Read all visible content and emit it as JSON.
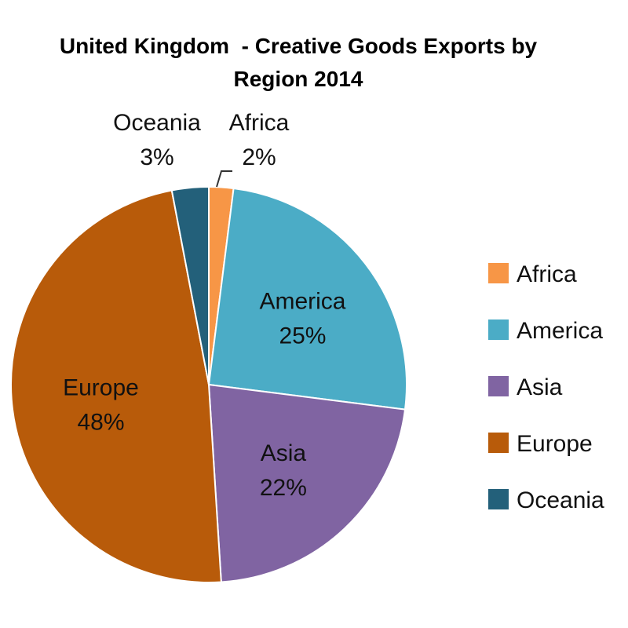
{
  "chart_data": {
    "type": "pie",
    "title_lines": [
      "United Kingdom  - Creative Goods Exports by",
      "Region 2014"
    ],
    "categories": [
      "Africa",
      "America",
      "Asia",
      "Europe",
      "Oceania"
    ],
    "values": [
      2,
      25,
      22,
      48,
      3
    ],
    "value_labels": [
      "2%",
      "25%",
      "22%",
      "48%",
      "3%"
    ],
    "colors": [
      "#F79646",
      "#4BACC6",
      "#8064A2",
      "#B85B0A",
      "#23607A"
    ],
    "label_text_colors": [
      "#111111",
      "#111111",
      "#111111",
      "#111111",
      "#111111"
    ],
    "start_angle_degrees": 0,
    "direction": "clockwise",
    "legend": {
      "position": "right",
      "entries": [
        "Africa",
        "America",
        "Asia",
        "Europe",
        "Oceania"
      ]
    }
  }
}
